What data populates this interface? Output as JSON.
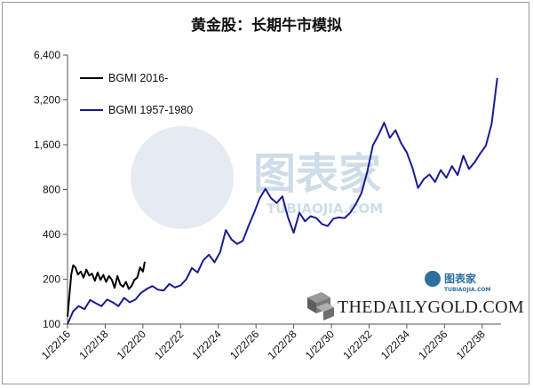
{
  "chart_data": {
    "type": "line",
    "title": "黄金股：长期牛市模拟",
    "xlabel": "",
    "ylabel": "",
    "y_scale": "log",
    "ylim": [
      100,
      6400
    ],
    "yticks": [
      100,
      200,
      400,
      800,
      1600,
      3200,
      6400
    ],
    "ytick_labels": [
      "100",
      "200",
      "400",
      "800",
      "1,600",
      "3,200",
      "6,400"
    ],
    "xtick_labels": [
      "1/22/16",
      "1/22/18",
      "1/22/20",
      "1/22/22",
      "1/22/24",
      "1/22/26",
      "1/22/28",
      "1/22/30",
      "1/22/32",
      "1/22/34",
      "1/22/36",
      "1/22/38"
    ],
    "xlim": [
      2016.0,
      2039.0
    ],
    "grid": false,
    "legend": "top-left",
    "series": [
      {
        "name": "BGMI 2016-",
        "color": "#000000",
        "x": [
          2016.0,
          2016.1,
          2016.2,
          2016.3,
          2016.42,
          2016.55,
          2016.7,
          2016.85,
          2017.0,
          2017.15,
          2017.3,
          2017.45,
          2017.6,
          2017.75,
          2017.9,
          2018.05,
          2018.2,
          2018.35,
          2018.5,
          2018.65,
          2018.8,
          2018.95,
          2019.1,
          2019.25,
          2019.4,
          2019.55,
          2019.7,
          2019.85,
          2020.0,
          2020.1
        ],
        "values": [
          112,
          155,
          215,
          248,
          240,
          215,
          225,
          205,
          232,
          212,
          218,
          195,
          222,
          198,
          214,
          192,
          210,
          198,
          175,
          210,
          185,
          178,
          192,
          172,
          180,
          198,
          205,
          240,
          225,
          262
        ]
      },
      {
        "name": "BGMI 1957-1980",
        "color": "#1b1c8f",
        "x": [
          2016.0,
          2016.3,
          2016.6,
          2016.9,
          2017.2,
          2017.5,
          2017.8,
          2018.1,
          2018.4,
          2018.7,
          2019.0,
          2019.3,
          2019.6,
          2019.9,
          2020.2,
          2020.5,
          2020.8,
          2021.1,
          2021.4,
          2021.7,
          2022.0,
          2022.3,
          2022.6,
          2022.9,
          2023.2,
          2023.5,
          2023.8,
          2024.1,
          2024.4,
          2024.7,
          2025.0,
          2025.3,
          2025.6,
          2025.9,
          2026.2,
          2026.5,
          2026.8,
          2027.1,
          2027.4,
          2027.7,
          2028.0,
          2028.3,
          2028.6,
          2028.9,
          2029.2,
          2029.5,
          2029.8,
          2030.1,
          2030.4,
          2030.7,
          2031.0,
          2031.3,
          2031.6,
          2031.9,
          2032.2,
          2032.5,
          2032.8,
          2033.1,
          2033.4,
          2033.7,
          2034.0,
          2034.3,
          2034.6,
          2034.9,
          2035.2,
          2035.5,
          2035.8,
          2036.1,
          2036.4,
          2036.7,
          2037.0,
          2037.3,
          2037.6,
          2037.9,
          2038.2,
          2038.5,
          2038.8
        ],
        "values": [
          100,
          122,
          132,
          126,
          145,
          138,
          132,
          146,
          140,
          132,
          150,
          140,
          146,
          162,
          172,
          180,
          170,
          168,
          186,
          176,
          182,
          200,
          238,
          222,
          268,
          292,
          260,
          305,
          428,
          370,
          345,
          362,
          455,
          560,
          700,
          810,
          700,
          650,
          720,
          520,
          410,
          560,
          490,
          530,
          515,
          470,
          455,
          510,
          520,
          515,
          560,
          640,
          760,
          1050,
          1580,
          1860,
          2250,
          1780,
          2000,
          1640,
          1420,
          1120,
          820,
          940,
          1010,
          900,
          1080,
          960,
          1150,
          1000,
          1350,
          1100,
          1220,
          1400,
          1580,
          2200,
          4500
        ]
      }
    ]
  },
  "watermark": {
    "brand_main": "THEDAILYGOLD.COM",
    "logo_small_cn": "图表家",
    "logo_small_en": "TUBIAOJIA.COM",
    "logo_big_cn": "图表家",
    "logo_big_en": "TUBIAOJIA.COM",
    "colors": {
      "logo_blue": "#2e6f9e",
      "watermark_blue": "#a9c2d6"
    }
  }
}
